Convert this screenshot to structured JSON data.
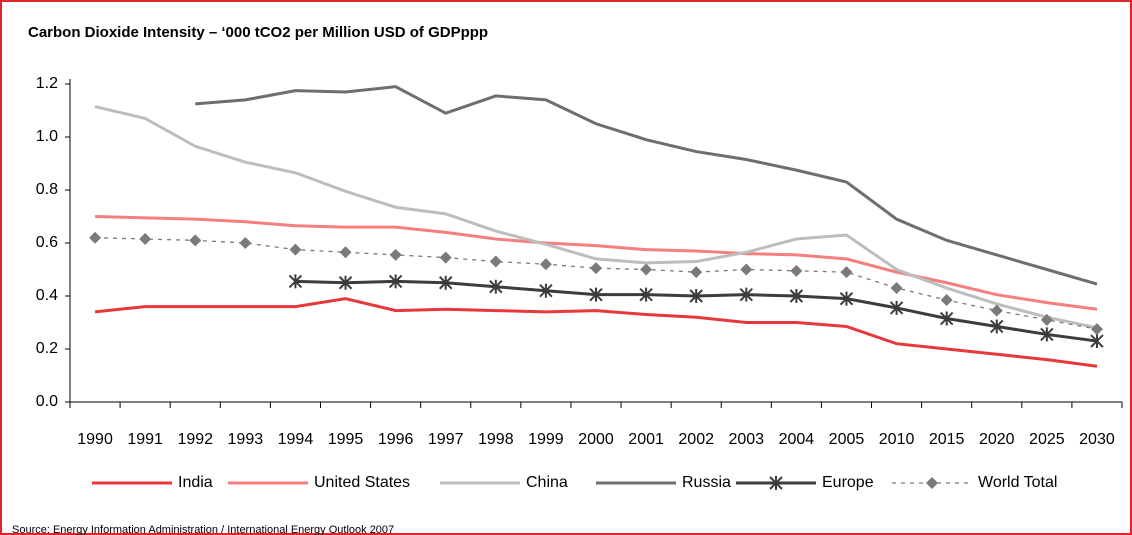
{
  "chart_data": {
    "type": "line",
    "title": "Carbon Dioxide Intensity – ‘000 tCO2 per Million USD of GDPppp",
    "source": "Source: Energy Information Administration / International Energy Outlook 2007",
    "categories": [
      "1990",
      "1991",
      "1992",
      "1993",
      "1994",
      "1995",
      "1996",
      "1997",
      "1998",
      "1999",
      "2000",
      "2001",
      "2002",
      "2003",
      "2004",
      "2005",
      "2010",
      "2015",
      "2020",
      "2025",
      "2030"
    ],
    "series": [
      {
        "name": "India",
        "color": "#e8383b",
        "style": "solid",
        "marker": "none",
        "values": [
          0.34,
          0.36,
          0.36,
          0.36,
          0.36,
          0.39,
          0.345,
          0.35,
          0.345,
          0.34,
          0.345,
          0.33,
          0.32,
          0.3,
          0.3,
          0.285,
          0.22,
          0.2,
          0.18,
          0.16,
          0.135
        ]
      },
      {
        "name": "United States",
        "color": "#f47f7f",
        "style": "solid",
        "marker": "none",
        "values": [
          0.7,
          0.695,
          0.69,
          0.68,
          0.665,
          0.66,
          0.66,
          0.64,
          0.615,
          0.6,
          0.59,
          0.575,
          0.57,
          0.56,
          0.555,
          0.54,
          0.49,
          0.45,
          0.405,
          0.375,
          0.35
        ]
      },
      {
        "name": "China",
        "color": "#bdbdbd",
        "style": "solid",
        "marker": "none",
        "values": [
          1.115,
          1.07,
          0.965,
          0.905,
          0.865,
          0.795,
          0.735,
          0.71,
          0.645,
          0.595,
          0.54,
          0.525,
          0.53,
          0.565,
          0.615,
          0.63,
          0.5,
          0.43,
          0.37,
          0.32,
          0.28
        ]
      },
      {
        "name": "Russia",
        "color": "#6e6e6e",
        "style": "solid",
        "marker": "none",
        "values": [
          null,
          null,
          1.125,
          1.14,
          1.175,
          1.17,
          1.19,
          1.09,
          1.155,
          1.14,
          1.05,
          0.99,
          0.945,
          0.915,
          0.875,
          0.83,
          0.69,
          0.61,
          0.555,
          0.5,
          0.445
        ]
      },
      {
        "name": "Europe",
        "color": "#3c3c3c",
        "style": "solid",
        "marker": "asterisk",
        "values": [
          null,
          null,
          null,
          null,
          0.455,
          0.45,
          0.455,
          0.45,
          0.435,
          0.42,
          0.405,
          0.405,
          0.4,
          0.405,
          0.4,
          0.39,
          0.355,
          0.315,
          0.285,
          0.255,
          0.23
        ]
      },
      {
        "name": "World Total",
        "color": "#7a7a7a",
        "style": "dashed",
        "marker": "diamond",
        "values": [
          0.62,
          0.615,
          0.61,
          0.6,
          0.575,
          0.565,
          0.555,
          0.545,
          0.53,
          0.52,
          0.505,
          0.5,
          0.49,
          0.5,
          0.495,
          0.49,
          0.43,
          0.385,
          0.345,
          0.31,
          0.275
        ]
      }
    ],
    "ylim": [
      0,
      1.2
    ],
    "yticks": [
      {
        "value": 0,
        "label": "0.0"
      },
      0.2,
      0.4,
      0.6,
      0.8,
      {
        "value": 1,
        "label": "1.0"
      },
      1.2
    ],
    "grid": false,
    "legend": "bottom"
  }
}
